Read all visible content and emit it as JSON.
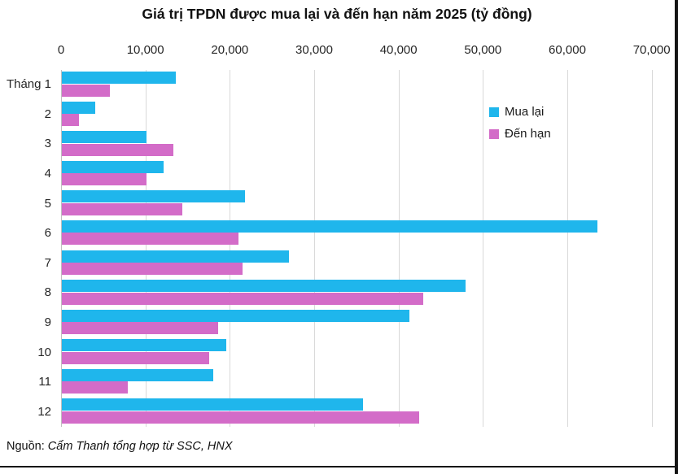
{
  "title": "Giá trị TPDN được mua lại và đến hạn năm 2025 (tỷ đồng)",
  "source": {
    "prefix": "Nguồn: ",
    "text": "Cẩm Thanh tổng hợp từ SSC, HNX"
  },
  "colors": {
    "mua_lai": "#1fb6ec",
    "den_han": "#d36cc8",
    "gridline": "#d9d9d9",
    "axis_line": "#bfbfbf",
    "frame_border": "#141414"
  },
  "chart_data": {
    "type": "bar",
    "orientation": "horizontal",
    "title": "Giá trị TPDN được mua lại và đến hạn năm 2025 (tỷ đồng)",
    "categories": [
      "Tháng 1",
      "2",
      "3",
      "4",
      "5",
      "6",
      "7",
      "8",
      "9",
      "10",
      "11",
      "12"
    ],
    "series": [
      {
        "name": "Mua lại",
        "color": "#1fb6ec",
        "values": [
          13500,
          4000,
          10000,
          12100,
          21700,
          63500,
          26900,
          47800,
          41200,
          19500,
          17900,
          35700
        ]
      },
      {
        "name": "Đến hạn",
        "color": "#d36cc8",
        "values": [
          5700,
          2000,
          13200,
          10000,
          14300,
          20900,
          21400,
          42800,
          18500,
          17500,
          7800,
          42300
        ]
      }
    ],
    "x_ticks": [
      "0",
      "10,000",
      "20,000",
      "30,000",
      "40,000",
      "50,000",
      "60,000",
      "70,000"
    ],
    "xlim": [
      0,
      70000
    ],
    "grid": true,
    "legend_position": "top-right",
    "value_axis_position": "top"
  }
}
